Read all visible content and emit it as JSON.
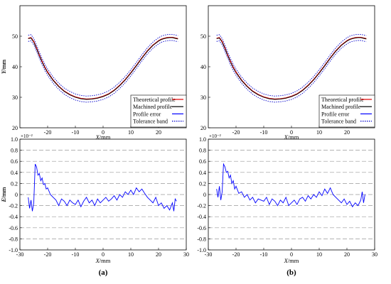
{
  "panels": [
    {
      "caption": "(a)"
    },
    {
      "caption": "(b)"
    }
  ],
  "legend": [
    {
      "label": "Theoretical profile",
      "color": "#e00000",
      "style": "solid"
    },
    {
      "label": "Machined profile",
      "color": "#000000",
      "style": "solid"
    },
    {
      "label": "Profile error",
      "color": "#0000ff",
      "style": "solid"
    },
    {
      "label": "Tolerance band",
      "color": "#0000cc",
      "style": "dotted"
    }
  ],
  "chart_data": [
    {
      "panel": "a",
      "type": "line",
      "title": "",
      "xlabel": "X/mm",
      "ylabel": "Y/mm",
      "xlim": [
        -30,
        30
      ],
      "ylim": [
        20,
        60
      ],
      "xticks": [
        -20,
        -10,
        0,
        10,
        20
      ],
      "yticks": [
        20,
        30,
        40,
        50
      ],
      "grid": false,
      "legend_position": "bottom-right",
      "series": [
        {
          "name": "Theoretical profile",
          "x": [
            -27,
            -26,
            -25,
            -24,
            -23,
            -22,
            -21,
            -20,
            -18,
            -16,
            -14,
            -12,
            -10,
            -8,
            -6,
            -4,
            -2,
            0,
            2,
            4,
            6,
            8,
            10,
            12,
            14,
            16,
            18,
            20,
            21,
            22,
            23,
            24,
            25,
            26,
            27
          ],
          "y": [
            49.3,
            49.5,
            48.2,
            46.1,
            43.8,
            41.7,
            39.8,
            38.2,
            35.6,
            33.6,
            32.0,
            30.9,
            30.1,
            29.6,
            29.4,
            29.5,
            29.8,
            30.3,
            31.1,
            32.3,
            33.9,
            35.8,
            38.0,
            40.4,
            42.9,
            45.2,
            47.1,
            48.5,
            49.0,
            49.3,
            49.5,
            49.6,
            49.6,
            49.4,
            49.2
          ]
        },
        {
          "name": "Machined profile",
          "x": [
            -27,
            -26,
            -25,
            -24,
            -23,
            -22,
            -21,
            -20,
            -18,
            -16,
            -14,
            -12,
            -10,
            -8,
            -6,
            -4,
            -2,
            0,
            2,
            4,
            6,
            8,
            10,
            12,
            14,
            16,
            18,
            20,
            21,
            22,
            23,
            24,
            25,
            26,
            27
          ],
          "y": [
            49.2,
            49.4,
            48.1,
            46.0,
            43.7,
            41.6,
            39.7,
            38.1,
            35.5,
            33.5,
            31.9,
            30.8,
            30.0,
            29.5,
            29.3,
            29.4,
            29.7,
            30.2,
            31.0,
            32.2,
            33.8,
            35.7,
            37.9,
            40.3,
            42.8,
            45.1,
            47.0,
            48.4,
            48.9,
            49.2,
            49.4,
            49.5,
            49.5,
            49.3,
            49.1
          ]
        },
        {
          "name": "Tolerance band",
          "offset": 1.0
        }
      ]
    },
    {
      "panel": "a",
      "type": "line",
      "title": "",
      "xlabel": "X/mm",
      "ylabel": "E/mm",
      "y_multiplier": "×10⁻²",
      "xlim": [
        -30,
        30
      ],
      "ylim": [
        -1.0,
        1.0
      ],
      "xticks": [
        -30,
        -20,
        -10,
        0,
        10,
        20,
        30
      ],
      "yticks": [
        -1.0,
        -0.8,
        -0.6,
        -0.4,
        -0.2,
        0,
        0.2,
        0.4,
        0.6,
        0.8,
        1.0
      ],
      "grid": "horizontal-dashed",
      "series": [
        {
          "name": "Profile error",
          "x": [
            -27,
            -26.5,
            -26,
            -25.5,
            -25,
            -24.5,
            -24,
            -23.5,
            -23,
            -22.5,
            -22,
            -21.5,
            -21,
            -20.5,
            -20,
            -19,
            -18,
            -17,
            -16,
            -15,
            -14,
            -13,
            -12,
            -11,
            -10,
            -9,
            -8,
            -7,
            -6,
            -5,
            -4,
            -3,
            -2,
            -1,
            0,
            1,
            2,
            3,
            4,
            5,
            6,
            7,
            8,
            9,
            10,
            11,
            12,
            13,
            14,
            15,
            16,
            17,
            18,
            19,
            20,
            21,
            22,
            23,
            24,
            25,
            25.5,
            26,
            26.5
          ],
          "y": [
            -0.05,
            -0.25,
            -0.1,
            -0.3,
            -0.15,
            0.55,
            0.5,
            0.35,
            0.38,
            0.25,
            0.3,
            0.18,
            0.2,
            0.1,
            0.12,
            0.0,
            -0.05,
            -0.1,
            -0.2,
            -0.08,
            -0.12,
            -0.2,
            -0.1,
            -0.15,
            -0.18,
            -0.1,
            -0.22,
            -0.12,
            -0.05,
            -0.15,
            -0.1,
            -0.2,
            -0.08,
            -0.15,
            -0.1,
            -0.05,
            -0.12,
            -0.08,
            -0.02,
            -0.1,
            0.0,
            -0.05,
            0.05,
            0.0,
            0.08,
            0.0,
            0.12,
            0.05,
            0.1,
            0.02,
            -0.05,
            -0.1,
            -0.15,
            -0.05,
            -0.2,
            -0.15,
            -0.25,
            -0.2,
            -0.28,
            -0.15,
            -0.3,
            -0.08,
            -0.12
          ]
        }
      ]
    },
    {
      "panel": "b",
      "type": "line",
      "title": "",
      "xlabel": "X/mm",
      "ylabel": "Y/mm",
      "xlim": [
        -30,
        30
      ],
      "ylim": [
        20,
        60
      ],
      "xticks": [
        -20,
        -10,
        0,
        10,
        20
      ],
      "yticks": [
        20,
        30,
        40,
        50
      ],
      "grid": false,
      "legend_position": "bottom-right",
      "series": [
        {
          "name": "Theoretical profile",
          "x": [
            -27,
            -26,
            -25,
            -24,
            -23,
            -22,
            -21,
            -20,
            -18,
            -16,
            -14,
            -12,
            -10,
            -8,
            -6,
            -4,
            -2,
            0,
            2,
            4,
            6,
            8,
            10,
            12,
            14,
            16,
            18,
            20,
            21,
            22,
            23,
            24,
            25,
            26,
            27
          ],
          "y": [
            49.3,
            49.5,
            48.2,
            46.1,
            43.8,
            41.7,
            39.8,
            38.2,
            35.6,
            33.6,
            32.0,
            30.9,
            30.1,
            29.6,
            29.4,
            29.5,
            29.8,
            30.3,
            31.1,
            32.3,
            33.9,
            35.8,
            38.0,
            40.4,
            42.9,
            45.2,
            47.1,
            48.5,
            49.0,
            49.3,
            49.5,
            49.6,
            49.6,
            49.4,
            49.2
          ]
        },
        {
          "name": "Machined profile",
          "x": [
            -27,
            -26,
            -25,
            -24,
            -23,
            -22,
            -21,
            -20,
            -18,
            -16,
            -14,
            -12,
            -10,
            -8,
            -6,
            -4,
            -2,
            0,
            2,
            4,
            6,
            8,
            10,
            12,
            14,
            16,
            18,
            20,
            21,
            22,
            23,
            24,
            25,
            26,
            27
          ],
          "y": [
            49.2,
            49.4,
            48.1,
            46.0,
            43.7,
            41.6,
            39.7,
            38.1,
            35.5,
            33.5,
            31.9,
            30.8,
            30.0,
            29.5,
            29.3,
            29.4,
            29.7,
            30.2,
            31.0,
            32.2,
            33.8,
            35.7,
            37.9,
            40.3,
            42.8,
            45.1,
            47.0,
            48.4,
            48.9,
            49.2,
            49.4,
            49.5,
            49.5,
            49.3,
            49.1
          ]
        },
        {
          "name": "Tolerance band",
          "offset": 1.0
        }
      ]
    },
    {
      "panel": "b",
      "type": "line",
      "title": "",
      "xlabel": "X/mm",
      "ylabel": "E/mm",
      "y_multiplier": "×10⁻²",
      "xlim": [
        -30,
        30
      ],
      "ylim": [
        -1.0,
        1.0
      ],
      "xticks": [
        -30,
        -20,
        -10,
        0,
        10,
        20,
        30
      ],
      "yticks": [
        -1.0,
        -0.8,
        -0.6,
        -0.4,
        -0.2,
        0,
        0.2,
        0.4,
        0.6,
        0.8,
        1.0
      ],
      "grid": "horizontal-dashed",
      "series": [
        {
          "name": "Profile error",
          "x": [
            -27,
            -26.5,
            -26,
            -25.5,
            -25,
            -24.5,
            -24,
            -23.5,
            -23,
            -22.5,
            -22,
            -21.5,
            -21,
            -20.5,
            -20,
            -19,
            -18,
            -17,
            -16,
            -15,
            -14,
            -13,
            -12,
            -11,
            -10,
            -9,
            -8,
            -7,
            -6,
            -5,
            -4,
            -3,
            -2,
            -1,
            0,
            1,
            2,
            3,
            4,
            5,
            6,
            7,
            8,
            9,
            10,
            11,
            12,
            13,
            14,
            15,
            16,
            17,
            18,
            19,
            20,
            21,
            22,
            23,
            24,
            25,
            25.5,
            26,
            26.5
          ],
          "y": [
            0.1,
            -0.05,
            0.15,
            -0.1,
            0.05,
            0.55,
            0.5,
            0.4,
            0.42,
            0.3,
            0.35,
            0.2,
            0.25,
            0.1,
            0.15,
            0.02,
            0.05,
            -0.05,
            0.0,
            -0.1,
            -0.05,
            -0.15,
            -0.08,
            -0.1,
            -0.12,
            -0.05,
            -0.18,
            -0.08,
            -0.12,
            -0.2,
            -0.1,
            -0.15,
            -0.05,
            -0.2,
            -0.15,
            -0.1,
            -0.18,
            -0.08,
            -0.05,
            -0.12,
            -0.02,
            -0.08,
            0.0,
            -0.05,
            0.05,
            -0.02,
            0.1,
            0.02,
            0.12,
            0.0,
            -0.05,
            -0.1,
            -0.15,
            -0.08,
            -0.18,
            -0.12,
            -0.22,
            -0.15,
            -0.2,
            -0.1,
            0.05,
            -0.15,
            0.0
          ]
        }
      ]
    }
  ]
}
